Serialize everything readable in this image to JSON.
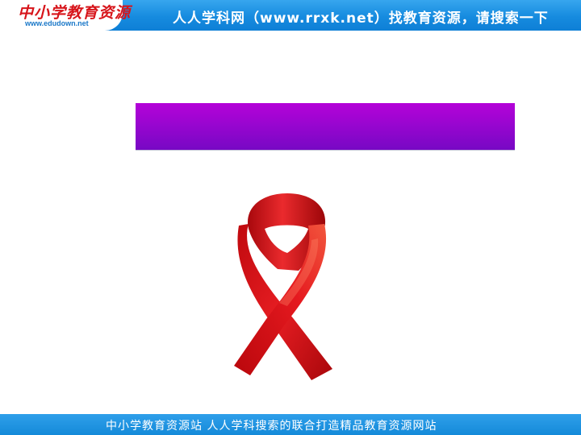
{
  "header": {
    "logo_text": "中小学教育资源",
    "logo_url": "www.edudown.net",
    "slogan": "人人学科网（www.rrxk.net）找教育资源，请搜索一下"
  },
  "slide": {
    "title": "",
    "ribbon": "red-ribbon-icon"
  },
  "footer": {
    "text": "中小学教育资源站 人人学科搜索的联合打造精品教育资源网站"
  },
  "colors": {
    "banner_blue": "#168bdf",
    "title_purple": "#9606cf",
    "ribbon_red": "#e0141c"
  }
}
